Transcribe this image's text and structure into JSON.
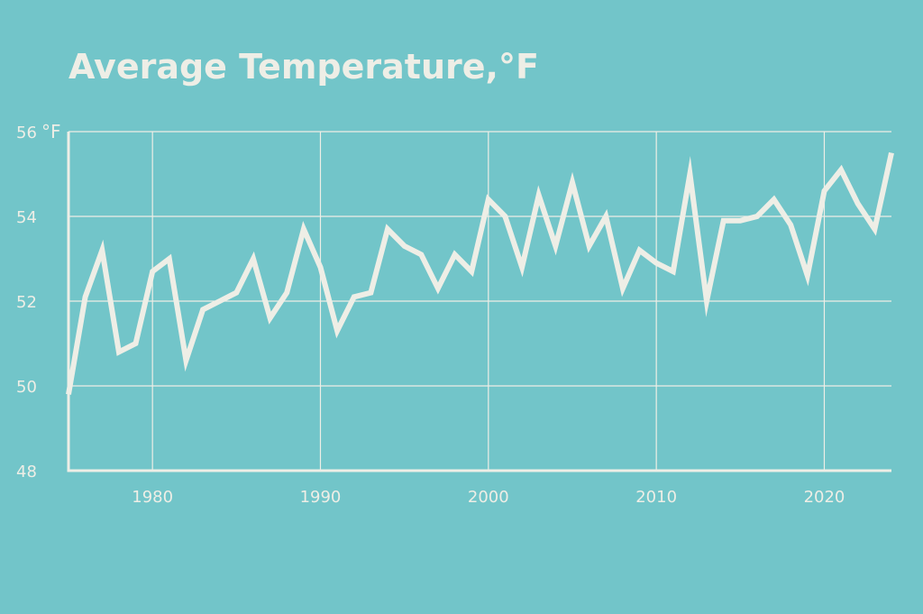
{
  "chart_data": {
    "type": "line",
    "title": "Average Temperature,°F",
    "y_unit_label": "°F",
    "xlabel": "",
    "ylabel": "",
    "xlim": [
      1975,
      2024
    ],
    "ylim": [
      48,
      56
    ],
    "x_ticks": [
      1980,
      1990,
      2000,
      2010,
      2020
    ],
    "y_ticks": [
      48,
      50,
      52,
      54,
      56
    ],
    "grid": true,
    "colors": {
      "background": "#72c5c9",
      "line": "#eeeee6",
      "grid": "#eeeee6",
      "text": "#eeeee6"
    },
    "series": [
      {
        "x": [
          1975,
          1976,
          1977,
          1978,
          1979,
          1980,
          1981,
          1982,
          1983,
          1984,
          1985,
          1986,
          1987,
          1988,
          1989,
          1990,
          1991,
          1992,
          1993,
          1994,
          1995,
          1996,
          1997,
          1998,
          1999,
          2000,
          2001,
          2002,
          2003,
          2004,
          2005,
          2006,
          2007,
          2008,
          2009,
          2010,
          2011,
          2012,
          2013,
          2014,
          2015,
          2016,
          2017,
          2018,
          2019,
          2020,
          2021,
          2022,
          2023,
          2024
        ],
        "values": [
          49.8,
          52.1,
          53.2,
          50.8,
          51.0,
          52.7,
          53.0,
          50.6,
          51.8,
          52.0,
          52.2,
          53.0,
          51.6,
          52.2,
          53.7,
          52.8,
          51.3,
          52.1,
          52.2,
          53.7,
          53.3,
          53.1,
          52.3,
          53.1,
          52.7,
          54.4,
          54.0,
          52.8,
          54.5,
          53.3,
          54.8,
          53.3,
          54.0,
          52.3,
          53.2,
          52.9,
          52.7,
          55.0,
          52.0,
          53.9,
          53.9,
          54.0,
          54.4,
          53.8,
          52.6,
          54.6,
          55.1,
          54.3,
          53.7,
          55.5
        ]
      }
    ]
  }
}
